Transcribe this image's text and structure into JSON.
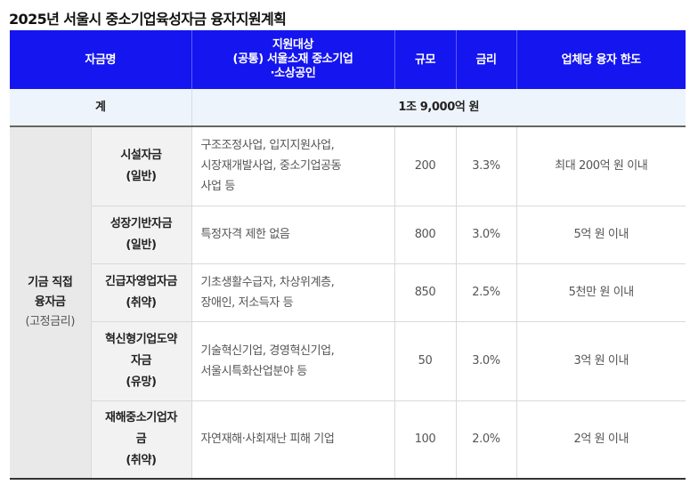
{
  "title": "2025년 서울시 중소기업육성자금 융자지원계획",
  "header": {
    "fund_name": "자금명",
    "target_lines": [
      "지원대상",
      "(공통) 서울소재 중소기업",
      "·소상공인"
    ],
    "scale": "규모",
    "rate": "금리",
    "limit": "업체당 융자 한도"
  },
  "total": {
    "label": "계",
    "value": "1조 9,000억 원"
  },
  "group": {
    "name_line1": "기금 직접",
    "name_line2": "융자금",
    "sub": "(고정금리)"
  },
  "rows": [
    {
      "name_lines": [
        "시설자금",
        "(일반)"
      ],
      "target_lines": [
        "구조조정사업, 입지지원사업,",
        "시장재개발사업, 중소기업공동",
        "사업 등"
      ],
      "scale": "200",
      "rate": "3.3%",
      "limit": "최대 200억 원 이내"
    },
    {
      "name_lines": [
        "성장기반자금",
        "(일반)"
      ],
      "target_lines": [
        "특정자격 제한 없음"
      ],
      "scale": "800",
      "rate": "3.0%",
      "limit": "5억 원 이내"
    },
    {
      "name_lines": [
        "긴급자영업자금",
        "(취약)"
      ],
      "target_lines": [
        "기초생활수급자, 차상위계층,",
        "장애인, 저소득자 등"
      ],
      "scale": "850",
      "rate": "2.5%",
      "limit": "5천만 원 이내"
    },
    {
      "name_lines": [
        "혁신형기업도약",
        "자금",
        "(유망)"
      ],
      "target_lines": [
        "기술혁신기업, 경영혁신기업,",
        "서울시특화산업분야 등"
      ],
      "scale": "50",
      "rate": "3.0%",
      "limit": "3억 원 이내"
    },
    {
      "name_lines": [
        "재해중소기업자",
        "금",
        "(취약)"
      ],
      "target_lines": [
        "자연재해·사회재난 피해 기업"
      ],
      "scale": "100",
      "rate": "2.0%",
      "limit": "2억 원 이내"
    }
  ]
}
